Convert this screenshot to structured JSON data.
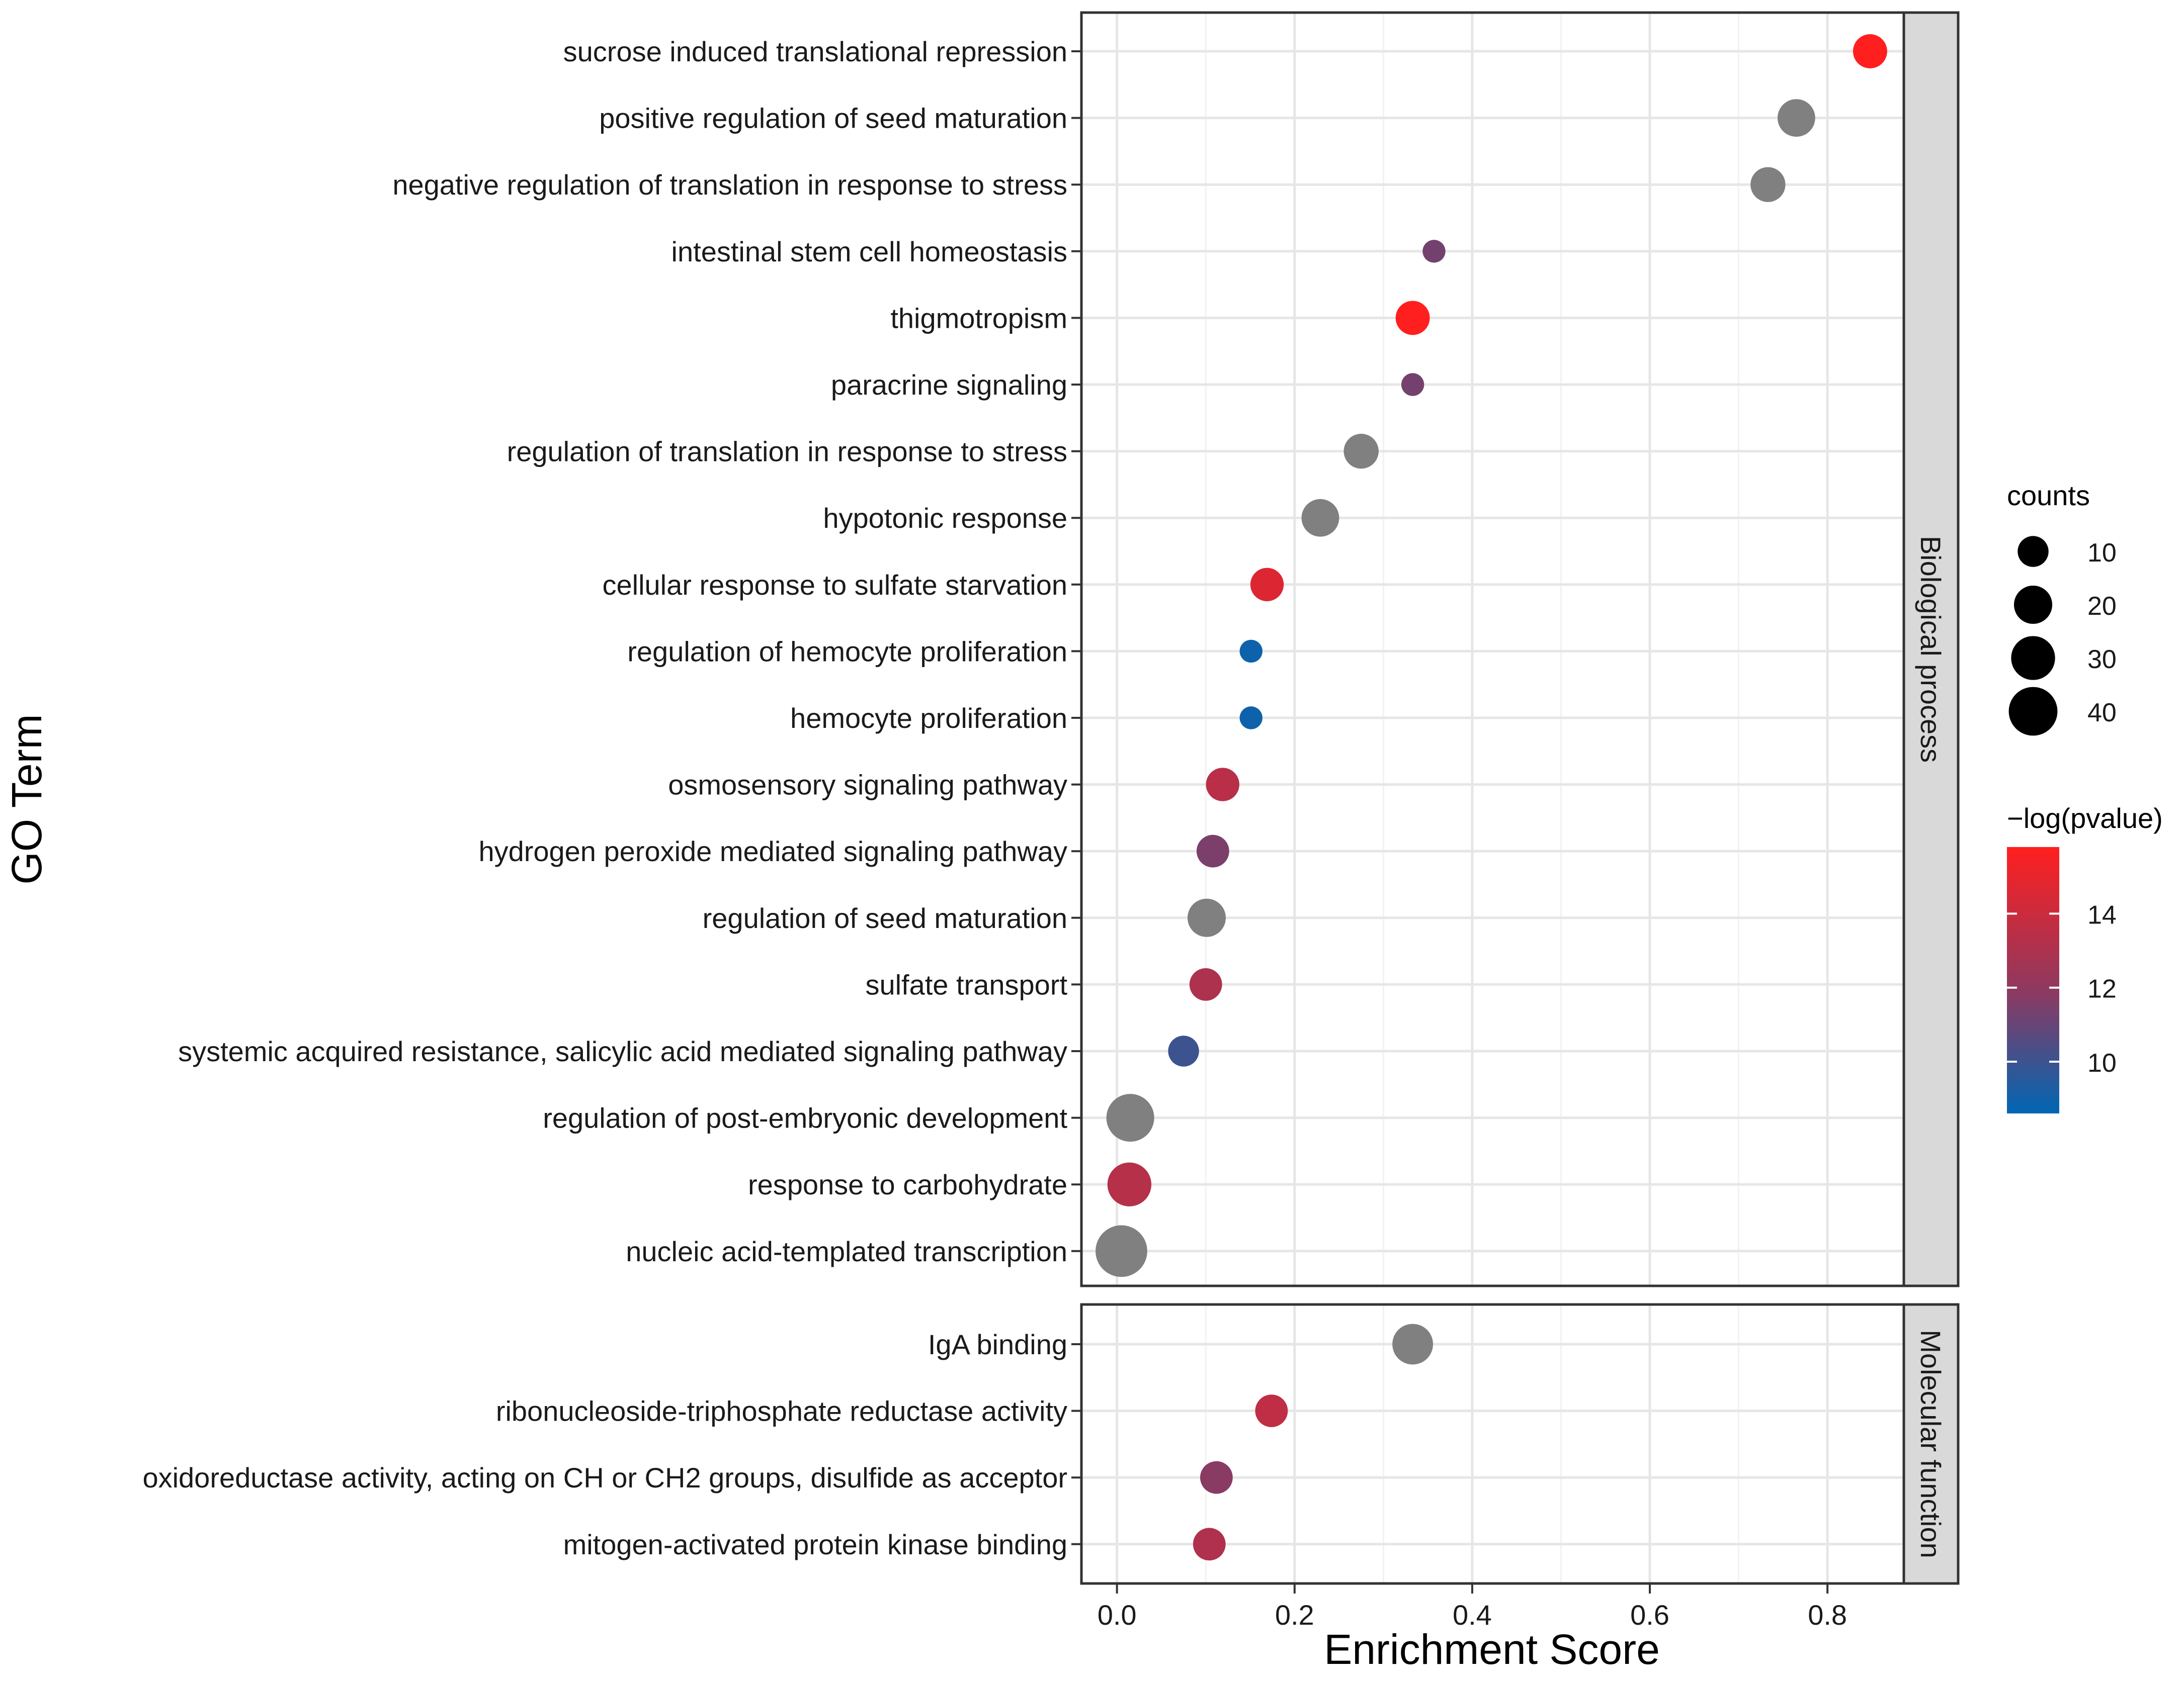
{
  "chart_data": {
    "type": "scatter",
    "subtype": "faceted dot plot",
    "xlabel": "Enrichment Score",
    "ylabel": "GO Term",
    "xlim": [
      -0.04,
      0.886
    ],
    "x_ticks": [
      "0.0",
      "0.2",
      "0.4",
      "0.6",
      "0.8"
    ],
    "x_tick_values": [
      0.0,
      0.2,
      0.4,
      0.6,
      0.8
    ],
    "na_color": "#808080",
    "panels": [
      {
        "strip_label": "Biological process",
        "terms": [
          {
            "term": "sucrose induced translational repression",
            "score": 0.848,
            "counts": 14,
            "neglog_p": 15.8
          },
          {
            "term": "positive regulation of seed maturation",
            "score": 0.765,
            "counts": 19,
            "neglog_p": null
          },
          {
            "term": "negative regulation of translation in response to stress",
            "score": 0.733,
            "counts": 15,
            "neglog_p": null
          },
          {
            "term": "intestinal stem cell homeostasis",
            "score": 0.357,
            "counts": 3,
            "neglog_p": 11.3
          },
          {
            "term": "thigmotropism",
            "score": 0.333,
            "counts": 14,
            "neglog_p": 15.8
          },
          {
            "term": "paracrine signaling",
            "score": 0.333,
            "counts": 3,
            "neglog_p": 11.3
          },
          {
            "term": "regulation of translation in response to stress",
            "score": 0.275,
            "counts": 15,
            "neglog_p": null
          },
          {
            "term": "hypotonic response",
            "score": 0.229,
            "counts": 19,
            "neglog_p": null
          },
          {
            "term": "cellular response to sulfate starvation",
            "score": 0.169,
            "counts": 13,
            "neglog_p": 14.6
          },
          {
            "term": "regulation of hemocyte proliferation",
            "score": 0.151,
            "counts": 3,
            "neglog_p": 8.9
          },
          {
            "term": "hemocyte proliferation",
            "score": 0.151,
            "counts": 3,
            "neglog_p": 8.9
          },
          {
            "term": "osmosensory signaling pathway",
            "score": 0.119,
            "counts": 13,
            "neglog_p": 13.4
          },
          {
            "term": "hydrogen peroxide mediated signaling pathway",
            "score": 0.108,
            "counts": 12,
            "neglog_p": 11.5
          },
          {
            "term": "regulation of seed maturation",
            "score": 0.101,
            "counts": 20,
            "neglog_p": null
          },
          {
            "term": "sulfate transport",
            "score": 0.1,
            "counts": 12,
            "neglog_p": 13.0
          },
          {
            "term": "systemic acquired resistance, salicylic acid mediated signaling pathway",
            "score": 0.075,
            "counts": 10,
            "neglog_p": 10.0
          },
          {
            "term": "regulation of post-embryonic development",
            "score": 0.015,
            "counts": 38,
            "neglog_p": null
          },
          {
            "term": "response to carbohydrate",
            "score": 0.014,
            "counts": 30,
            "neglog_p": 13.3
          },
          {
            "term": "nucleic acid-templated transcription",
            "score": 0.005,
            "counts": 47,
            "neglog_p": null
          }
        ]
      },
      {
        "strip_label": "Molecular function",
        "terms": [
          {
            "term": "IgA binding",
            "score": 0.333,
            "counts": 24,
            "neglog_p": null
          },
          {
            "term": "ribonucleoside-triphosphate reductase activity",
            "score": 0.174,
            "counts": 12,
            "neglog_p": 13.6
          },
          {
            "term": "oxidoreductase activity, acting on CH or CH2 groups, disulfide as acceptor",
            "score": 0.112,
            "counts": 12,
            "neglog_p": 11.8
          },
          {
            "term": "mitogen-activated protein kinase binding",
            "score": 0.104,
            "counts": 12,
            "neglog_p": 13.1
          }
        ]
      }
    ],
    "legend_size": {
      "title": "counts",
      "items": [
        {
          "label": "10",
          "value": 10
        },
        {
          "label": "20",
          "value": 20
        },
        {
          "label": "30",
          "value": 30
        },
        {
          "label": "40",
          "value": 40
        }
      ]
    },
    "legend_color": {
      "title": "−log(pvalue)",
      "min": 8.6,
      "max": 15.8,
      "low_color": "#0066b3",
      "mid_color": "#8b3a62",
      "high_color": "#ff1f1f",
      "ticks": [
        {
          "label": "10",
          "value": 10
        },
        {
          "label": "12",
          "value": 12
        },
        {
          "label": "14",
          "value": 14
        }
      ]
    }
  }
}
